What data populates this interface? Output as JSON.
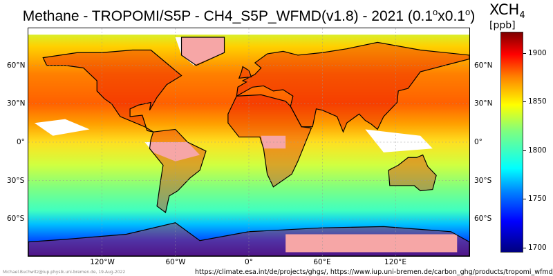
{
  "title": {
    "main": "Methane - TROPOMI/S5P - CH4_S5P_WFMD(v1.8) - 2021 (0.1",
    "sup1": "o",
    "mid": "x0.1",
    "sup2": "o",
    "end": ")"
  },
  "map": {
    "lat_labels": [
      "60°N",
      "30°N",
      "0°",
      "30°S",
      "60°S"
    ],
    "lon_labels": [
      "120°W",
      "60°W",
      "0°",
      "60°E",
      "120°E"
    ]
  },
  "colorbar": {
    "title": "XCH",
    "title_sub": "4",
    "unit": "[ppb]",
    "ticks": [
      "1900",
      "1850",
      "1800",
      "1750",
      "1700"
    ],
    "range": [
      1695,
      1922
    ]
  },
  "footer": {
    "credit": "Michael.Buchwitz@iup.physik.uni-bremen.de, 19-Aug-2022",
    "urls": "https://climate.esa.int/de/projects/ghgs/, https://www.iup.uni-bremen.de/carbon_ghg/products/tropomi_wfmd/"
  }
}
